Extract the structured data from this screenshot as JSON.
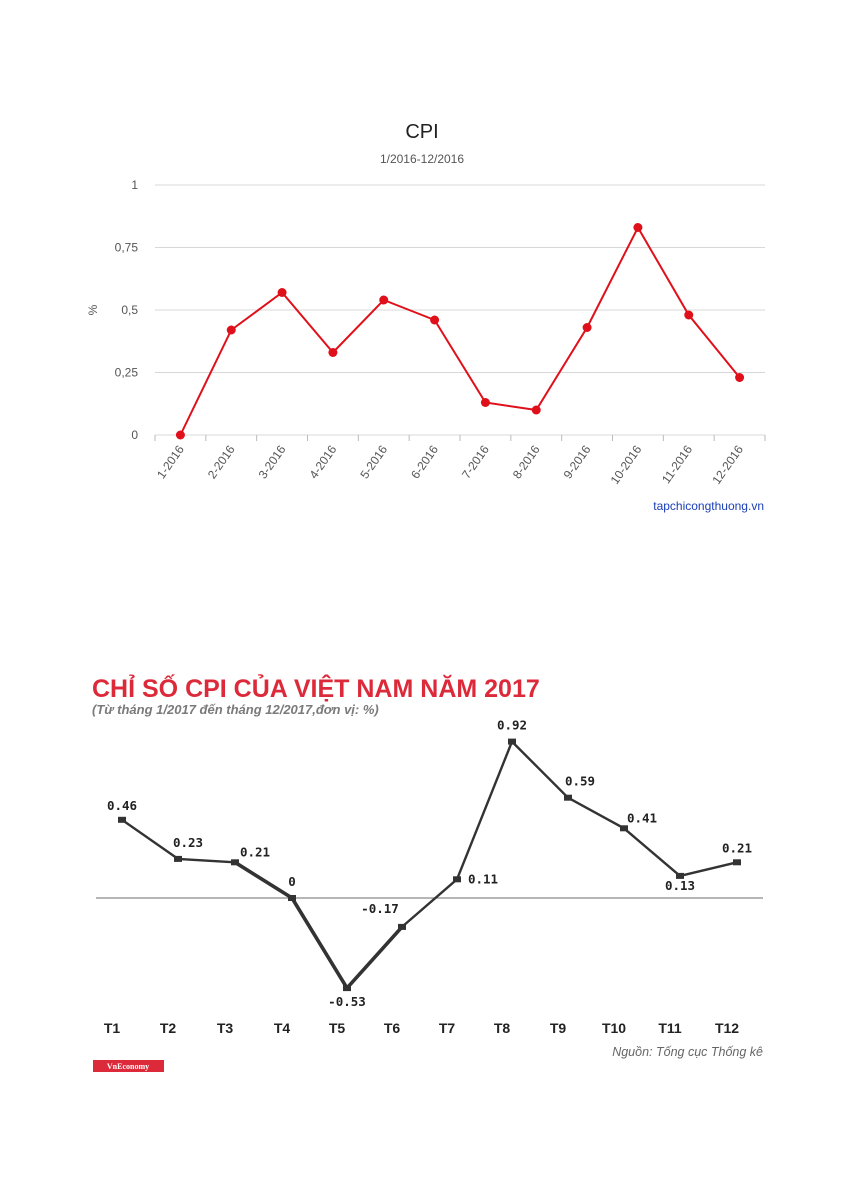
{
  "chart_data": [
    {
      "type": "line",
      "title": "CPI",
      "subtitle": "1/2016-12/2016",
      "ylabel": "%",
      "xlabel": "",
      "ylim": [
        0,
        1
      ],
      "yticks": [
        "0",
        "0,25",
        "0,5",
        "0,75",
        "1"
      ],
      "ytick_values": [
        0,
        0.25,
        0.5,
        0.75,
        1
      ],
      "grid": true,
      "categories": [
        "1-2016",
        "2-2016",
        "3-2016",
        "4-2016",
        "5-2016",
        "6-2016",
        "7-2016",
        "8-2016",
        "9-2016",
        "10-2016",
        "11-2016",
        "12-2016"
      ],
      "series": [
        {
          "values": [
            0.0,
            0.42,
            0.57,
            0.33,
            0.54,
            0.46,
            0.13,
            0.1,
            0.43,
            0.83,
            0.48,
            0.23
          ]
        }
      ],
      "color": "#e0101a",
      "source": "tapchicongthuong.vn"
    },
    {
      "type": "line",
      "title": "CHỈ SỐ CPI CỦA VIỆT NAM NĂM 2017",
      "subtitle": "(Từ tháng 1/2017 đến tháng 12/2017,đơn vị: %)",
      "categories": [
        "T1",
        "T2",
        "T3",
        "T4",
        "T5",
        "T6",
        "T7",
        "T8",
        "T9",
        "T10",
        "T11",
        "T12"
      ],
      "series": [
        {
          "values": [
            0.46,
            0.23,
            0.21,
            0,
            -0.53,
            -0.17,
            0.11,
            0.92,
            0.59,
            0.41,
            0.13,
            0.21
          ]
        }
      ],
      "data_labels": [
        "0.46",
        "0.23",
        "0.21",
        "0",
        "-0.53",
        "-0.17",
        "0.11",
        "0.92",
        "0.59",
        "0.41",
        "0.13",
        "0.21"
      ],
      "ylim": [
        -0.53,
        0.92
      ],
      "grid": false,
      "baseline": 0,
      "color": "#333333",
      "title_color": "#dd2a3a",
      "source": "Nguồn: Tống cục Thống kê",
      "logo": "VnEconomy"
    }
  ]
}
